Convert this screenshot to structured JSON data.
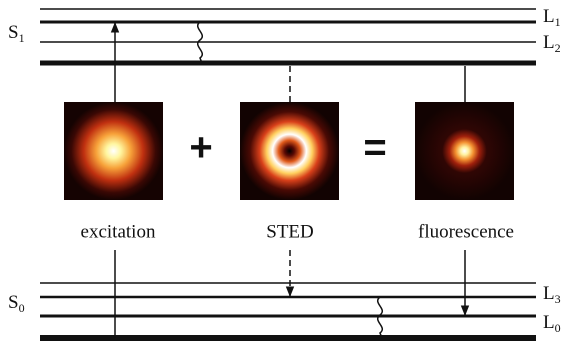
{
  "levels": {
    "s1": {
      "main": "S",
      "sub": "1"
    },
    "l1": {
      "main": "L",
      "sub": "1"
    },
    "l2": {
      "main": "L",
      "sub": "2"
    },
    "s0": {
      "main": "S",
      "sub": "0"
    },
    "l3": {
      "main": "L",
      "sub": "3"
    },
    "l0": {
      "main": "L",
      "sub": "0"
    }
  },
  "operators": {
    "plus": "+",
    "equals": "="
  },
  "panels": [
    {
      "label": "excitation"
    },
    {
      "label": "STED"
    },
    {
      "label": "fluorescence"
    }
  ]
}
